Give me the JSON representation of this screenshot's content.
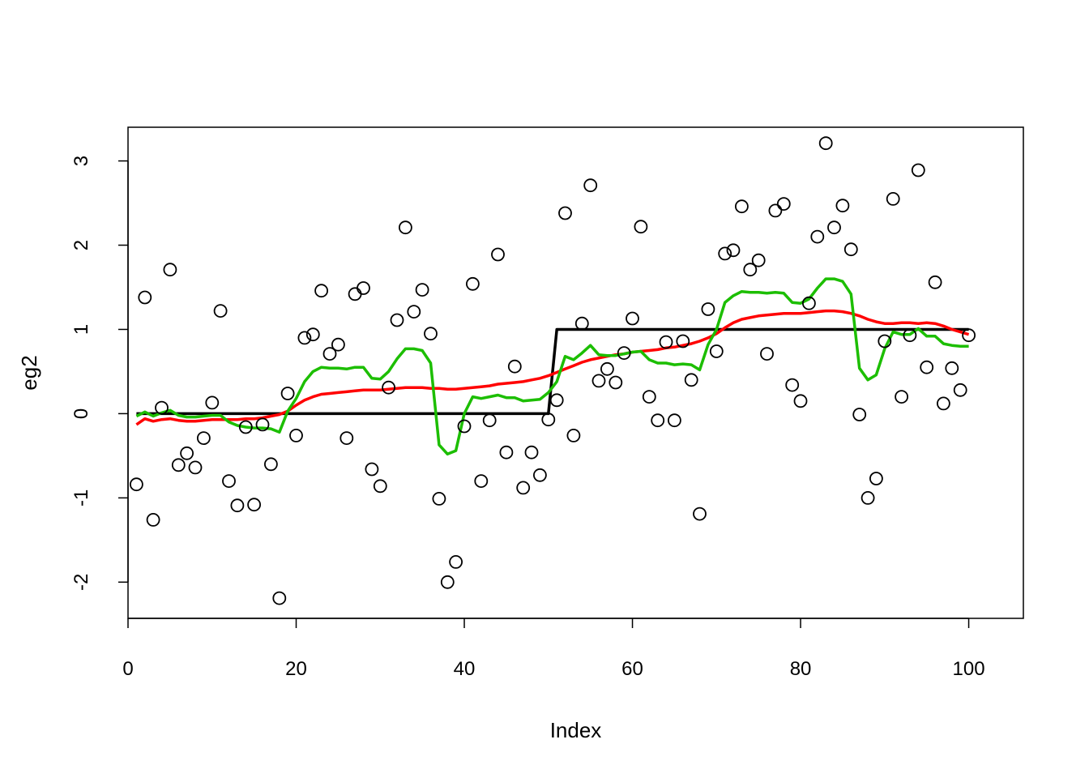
{
  "chart_data": {
    "type": "scatter",
    "title": "",
    "xlabel": "Index",
    "ylabel": "eg2",
    "xlim": [
      0,
      106.5
    ],
    "ylim": [
      -2.43,
      3.4
    ],
    "x_ticks": [
      0,
      20,
      40,
      60,
      80,
      100
    ],
    "y_ticks": [
      -2,
      -1,
      0,
      1,
      2,
      3
    ],
    "grid": false,
    "legend": "none",
    "points": {
      "x": [
        1,
        2,
        3,
        4,
        5,
        6,
        7,
        8,
        9,
        10,
        11,
        12,
        13,
        14,
        15,
        16,
        17,
        18,
        19,
        20,
        21,
        22,
        23,
        24,
        25,
        26,
        27,
        28,
        29,
        30,
        31,
        32,
        33,
        34,
        35,
        36,
        37,
        38,
        39,
        40,
        41,
        42,
        43,
        44,
        45,
        46,
        47,
        48,
        49,
        50,
        51,
        52,
        53,
        54,
        55,
        56,
        57,
        58,
        59,
        60,
        61,
        62,
        63,
        64,
        65,
        66,
        67,
        68,
        69,
        70,
        71,
        72,
        73,
        74,
        75,
        76,
        77,
        78,
        79,
        80,
        81,
        82,
        83,
        84,
        85,
        86,
        87,
        88,
        89,
        90,
        91,
        92,
        93,
        94,
        95,
        96,
        97,
        98,
        99,
        100
      ],
      "y": [
        -0.84,
        1.38,
        -1.26,
        0.07,
        1.71,
        -0.61,
        -0.47,
        -0.64,
        -0.29,
        0.13,
        1.22,
        -0.8,
        -1.09,
        -0.16,
        -1.08,
        -0.13,
        -0.6,
        -2.19,
        0.24,
        -0.26,
        0.9,
        0.94,
        1.46,
        0.71,
        0.82,
        -0.29,
        1.42,
        1.49,
        -0.66,
        -0.86,
        0.31,
        1.11,
        2.21,
        1.21,
        1.47,
        0.95,
        -1.01,
        -2.0,
        -1.76,
        -0.15,
        1.54,
        -0.8,
        -0.08,
        1.89,
        -0.46,
        0.56,
        -0.88,
        -0.46,
        -0.73,
        -0.07,
        0.16,
        2.38,
        -0.26,
        1.07,
        2.71,
        0.39,
        0.53,
        0.37,
        0.72,
        1.13,
        2.22,
        0.2,
        -0.08,
        0.85,
        -0.08,
        0.86,
        0.4,
        -1.19,
        1.24,
        0.74,
        1.9,
        1.94,
        2.46,
        1.71,
        1.82,
        0.71,
        2.41,
        2.49,
        0.34,
        0.15,
        1.31,
        2.1,
        3.21,
        2.21,
        2.47,
        1.95,
        -0.01,
        -1.0,
        -0.77,
        0.86,
        2.55,
        0.2,
        0.93,
        2.89,
        0.55,
        1.56,
        0.12,
        0.54,
        0.28,
        0.93
      ],
      "color": "#000000"
    },
    "series": [
      {
        "x": [
          1,
          50,
          51,
          100
        ],
        "y": [
          0,
          0,
          1,
          1
        ],
        "color": "#000000"
      },
      {
        "x": [
          1,
          2,
          3,
          4,
          5,
          6,
          7,
          8,
          9,
          10,
          11,
          12,
          13,
          14,
          15,
          16,
          17,
          18,
          19,
          20,
          21,
          22,
          23,
          24,
          25,
          26,
          27,
          28,
          29,
          30,
          31,
          32,
          33,
          34,
          35,
          36,
          37,
          38,
          39,
          40,
          41,
          42,
          43,
          44,
          45,
          46,
          47,
          48,
          49,
          50,
          51,
          52,
          53,
          54,
          55,
          56,
          57,
          58,
          59,
          60,
          61,
          62,
          63,
          64,
          65,
          66,
          67,
          68,
          69,
          70,
          71,
          72,
          73,
          74,
          75,
          76,
          77,
          78,
          79,
          80,
          81,
          82,
          83,
          84,
          85,
          86,
          87,
          88,
          89,
          90,
          91,
          92,
          93,
          94,
          95,
          96,
          97,
          98,
          99,
          100
        ],
        "y": [
          -0.13,
          -0.06,
          -0.09,
          -0.07,
          -0.06,
          -0.08,
          -0.09,
          -0.09,
          -0.08,
          -0.07,
          -0.07,
          -0.07,
          -0.07,
          -0.06,
          -0.06,
          -0.05,
          -0.03,
          -0.01,
          0.03,
          0.1,
          0.16,
          0.2,
          0.23,
          0.24,
          0.25,
          0.26,
          0.27,
          0.28,
          0.28,
          0.28,
          0.29,
          0.3,
          0.31,
          0.31,
          0.31,
          0.3,
          0.3,
          0.29,
          0.29,
          0.3,
          0.31,
          0.32,
          0.33,
          0.35,
          0.36,
          0.37,
          0.38,
          0.4,
          0.42,
          0.45,
          0.49,
          0.53,
          0.57,
          0.61,
          0.64,
          0.66,
          0.68,
          0.7,
          0.71,
          0.73,
          0.74,
          0.75,
          0.76,
          0.78,
          0.79,
          0.81,
          0.83,
          0.86,
          0.9,
          0.95,
          1.02,
          1.08,
          1.12,
          1.14,
          1.16,
          1.17,
          1.18,
          1.19,
          1.19,
          1.19,
          1.2,
          1.21,
          1.22,
          1.22,
          1.21,
          1.19,
          1.16,
          1.12,
          1.09,
          1.07,
          1.07,
          1.08,
          1.08,
          1.07,
          1.08,
          1.07,
          1.04,
          1.0,
          0.97,
          0.94
        ],
        "color": "#ff0000"
      },
      {
        "x": [
          1,
          2,
          3,
          4,
          5,
          6,
          7,
          8,
          9,
          10,
          11,
          12,
          13,
          14,
          15,
          16,
          17,
          18,
          19,
          20,
          21,
          22,
          23,
          24,
          25,
          26,
          27,
          28,
          29,
          30,
          31,
          32,
          33,
          34,
          35,
          36,
          37,
          38,
          39,
          40,
          41,
          42,
          43,
          44,
          45,
          46,
          47,
          48,
          49,
          50,
          51,
          52,
          53,
          54,
          55,
          56,
          57,
          58,
          59,
          60,
          61,
          62,
          63,
          64,
          65,
          66,
          67,
          68,
          69,
          70,
          71,
          72,
          73,
          74,
          75,
          76,
          77,
          78,
          79,
          80,
          81,
          82,
          83,
          84,
          85,
          86,
          87,
          88,
          89,
          90,
          91,
          92,
          93,
          94,
          95,
          96,
          97,
          98,
          99,
          100
        ],
        "y": [
          -0.03,
          0.02,
          -0.03,
          0.01,
          0.04,
          -0.02,
          -0.04,
          -0.04,
          -0.03,
          -0.02,
          -0.02,
          -0.1,
          -0.14,
          -0.16,
          -0.17,
          -0.17,
          -0.18,
          -0.22,
          0.03,
          0.18,
          0.38,
          0.5,
          0.55,
          0.54,
          0.54,
          0.53,
          0.55,
          0.55,
          0.42,
          0.41,
          0.5,
          0.65,
          0.77,
          0.77,
          0.75,
          0.6,
          -0.37,
          -0.48,
          -0.44,
          0.0,
          0.2,
          0.18,
          0.2,
          0.22,
          0.19,
          0.19,
          0.15,
          0.16,
          0.17,
          0.25,
          0.38,
          0.68,
          0.64,
          0.72,
          0.81,
          0.7,
          0.69,
          0.69,
          0.71,
          0.73,
          0.74,
          0.64,
          0.6,
          0.6,
          0.58,
          0.59,
          0.58,
          0.52,
          0.82,
          1.0,
          1.32,
          1.4,
          1.45,
          1.44,
          1.44,
          1.43,
          1.44,
          1.43,
          1.32,
          1.31,
          1.36,
          1.49,
          1.6,
          1.6,
          1.57,
          1.42,
          0.54,
          0.4,
          0.46,
          0.77,
          0.97,
          0.94,
          0.94,
          1.01,
          0.92,
          0.92,
          0.83,
          0.81,
          0.8,
          0.8
        ],
        "color": "#1cbe00"
      }
    ]
  }
}
